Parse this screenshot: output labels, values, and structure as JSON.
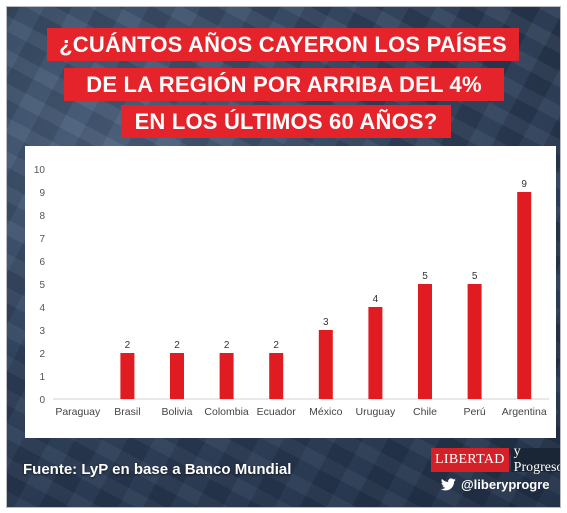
{
  "title_lines": [
    "¿CUÁNTOS AÑOS CAYERON LOS PAÍSES",
    "DE LA REGIÓN POR ARRIBA DEL 4%",
    "EN LOS ÚLTIMOS 60 AÑOS?"
  ],
  "source": "Fuente: LyP en base a Banco Mundial",
  "brand": {
    "part1": "LIBERTAD",
    "part2": "y Progreso",
    "handle": "@liberyprogre",
    "icon": "twitter-icon"
  },
  "colors": {
    "title_bg": "#e4232a",
    "bar": "#e01b22",
    "background": "#34465f"
  },
  "chart_data": {
    "type": "bar",
    "title": "",
    "xlabel": "",
    "ylabel": "",
    "categories": [
      "Paraguay",
      "Brasil",
      "Bolivia",
      "Colombia",
      "Ecuador",
      "México",
      "Uruguay",
      "Chile",
      "Perú",
      "Argentina"
    ],
    "values": [
      0,
      2,
      2,
      2,
      2,
      3,
      4,
      5,
      5,
      9
    ],
    "data_labels": [
      "",
      "2",
      "2",
      "2",
      "2",
      "3",
      "4",
      "5",
      "5",
      "9"
    ],
    "ylim": [
      0,
      10
    ],
    "yticks": [
      0,
      1,
      2,
      3,
      4,
      5,
      6,
      7,
      8,
      9,
      10
    ],
    "grid": false,
    "legend": "none"
  }
}
